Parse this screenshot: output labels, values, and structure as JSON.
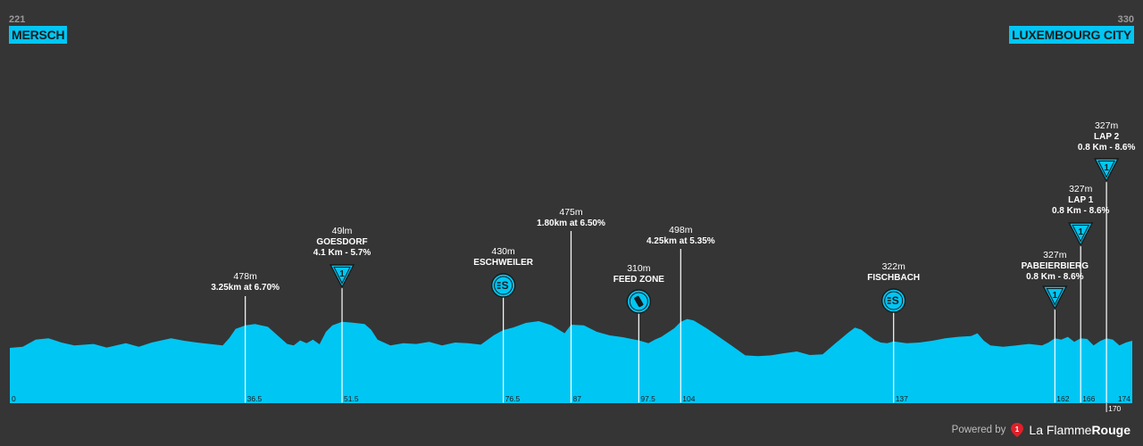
{
  "start": {
    "altitude": "221",
    "name": "MERSCH"
  },
  "finish": {
    "altitude": "330",
    "name": "LUXEMBOURG CITY"
  },
  "footer": {
    "powered_by": "Powered by",
    "brand_a": "La Flamme",
    "brand_b": "Rouge",
    "logo_mark": "1"
  },
  "colors": {
    "background": "#353535",
    "profile": "#00c6f4",
    "label": "#ffffff",
    "kmtext": "#1e1e1e"
  },
  "chart_data": {
    "type": "area",
    "x_unit": "km",
    "xlim": [
      0,
      174
    ],
    "profile": [
      [
        0,
        255
      ],
      [
        2,
        258
      ],
      [
        4,
        278
      ],
      [
        6,
        282
      ],
      [
        8,
        270
      ],
      [
        10,
        262
      ],
      [
        13,
        266
      ],
      [
        15,
        256
      ],
      [
        18,
        268
      ],
      [
        20,
        258
      ],
      [
        22,
        270
      ],
      [
        25,
        282
      ],
      [
        27,
        275
      ],
      [
        29,
        270
      ],
      [
        31,
        266
      ],
      [
        33,
        262
      ],
      [
        34,
        282
      ],
      [
        35,
        308
      ],
      [
        36.5,
        318
      ],
      [
        38,
        322
      ],
      [
        40,
        314
      ],
      [
        41.5,
        290
      ],
      [
        43,
        266
      ],
      [
        44,
        262
      ],
      [
        45,
        276
      ],
      [
        46,
        268
      ],
      [
        47,
        278
      ],
      [
        48,
        265
      ],
      [
        49,
        300
      ],
      [
        50,
        318
      ],
      [
        51.5,
        328
      ],
      [
        53,
        326
      ],
      [
        55,
        322
      ],
      [
        56,
        306
      ],
      [
        57,
        278
      ],
      [
        59,
        262
      ],
      [
        61,
        268
      ],
      [
        63,
        266
      ],
      [
        65,
        272
      ],
      [
        67,
        262
      ],
      [
        69,
        270
      ],
      [
        71,
        268
      ],
      [
        73,
        264
      ],
      [
        75,
        290
      ],
      [
        76.5,
        305
      ],
      [
        78,
        312
      ],
      [
        80,
        325
      ],
      [
        82,
        330
      ],
      [
        84,
        318
      ],
      [
        86,
        296
      ],
      [
        87,
        320
      ],
      [
        89,
        318
      ],
      [
        91,
        300
      ],
      [
        93,
        290
      ],
      [
        95,
        285
      ],
      [
        97.5,
        276
      ],
      [
        99,
        268
      ],
      [
        100,
        278
      ],
      [
        101,
        286
      ],
      [
        103,
        310
      ],
      [
        104,
        328
      ],
      [
        105,
        336
      ],
      [
        106,
        332
      ],
      [
        108,
        310
      ],
      [
        110,
        285
      ],
      [
        112,
        260
      ],
      [
        114,
        234
      ],
      [
        116,
        232
      ],
      [
        118,
        234
      ],
      [
        120,
        240
      ],
      [
        122,
        245
      ],
      [
        124,
        235
      ],
      [
        126,
        237
      ],
      [
        128,
        268
      ],
      [
        130,
        298
      ],
      [
        131,
        312
      ],
      [
        132,
        306
      ],
      [
        133,
        292
      ],
      [
        134,
        278
      ],
      [
        135,
        270
      ],
      [
        136,
        268
      ],
      [
        137,
        273
      ],
      [
        139,
        268
      ],
      [
        141,
        270
      ],
      [
        143,
        275
      ],
      [
        145,
        282
      ],
      [
        147,
        286
      ],
      [
        149,
        288
      ],
      [
        150,
        296
      ],
      [
        151,
        275
      ],
      [
        152,
        262
      ],
      [
        154,
        258
      ],
      [
        156,
        262
      ],
      [
        158,
        266
      ],
      [
        160,
        262
      ],
      [
        161,
        270
      ],
      [
        162,
        282
      ],
      [
        163,
        278
      ],
      [
        164,
        286
      ],
      [
        165,
        272
      ],
      [
        166,
        282
      ],
      [
        167,
        280
      ],
      [
        168,
        262
      ],
      [
        169,
        274
      ],
      [
        170,
        282
      ],
      [
        171,
        278
      ],
      [
        172,
        262
      ],
      [
        173,
        270
      ],
      [
        174,
        275
      ]
    ],
    "y_unit": "m",
    "km_markers": [
      "0",
      "36.5",
      "51.5",
      "76.5",
      "87",
      "97.5",
      "104",
      "137",
      "162",
      "166",
      "170",
      "174"
    ],
    "annotations": [
      {
        "km": 36.5,
        "alt": "478m",
        "name": "",
        "desc": "3.25km at 6.70%",
        "icon": "none"
      },
      {
        "km": 51.5,
        "alt": "49lm",
        "name": "GOESDORF",
        "desc": "4.1 Km - 5.7%",
        "icon": "kom",
        "icon_text": "1"
      },
      {
        "km": 76.5,
        "alt": "430m",
        "name": "ESCHWEILER",
        "desc": "",
        "icon": "sprint"
      },
      {
        "km": 87,
        "alt": "475m",
        "name": "",
        "desc": "1.80km at 6.50%",
        "icon": "none"
      },
      {
        "km": 97.5,
        "alt": "310m",
        "name": "FEED ZONE",
        "desc": "",
        "icon": "feed"
      },
      {
        "km": 104,
        "alt": "498m",
        "name": "",
        "desc": "4.25km at 5.35%",
        "icon": "none"
      },
      {
        "km": 137,
        "alt": "322m",
        "name": "FISCHBACH",
        "desc": "",
        "icon": "sprint"
      },
      {
        "km": 162,
        "alt": "327m",
        "name": "PABEIERBIERG",
        "desc": "0.8 Km - 8.6%",
        "icon": "kom",
        "icon_text": "1"
      },
      {
        "km": 166,
        "alt": "327m",
        "name": "LAP 1",
        "desc": "0.8 Km - 8.6%",
        "icon": "kom",
        "icon_text": "1"
      },
      {
        "km": 170,
        "alt": "327m",
        "name": "LAP 2",
        "desc": "0.8 Km - 8.6%",
        "icon": "kom",
        "icon_text": "1"
      }
    ]
  }
}
